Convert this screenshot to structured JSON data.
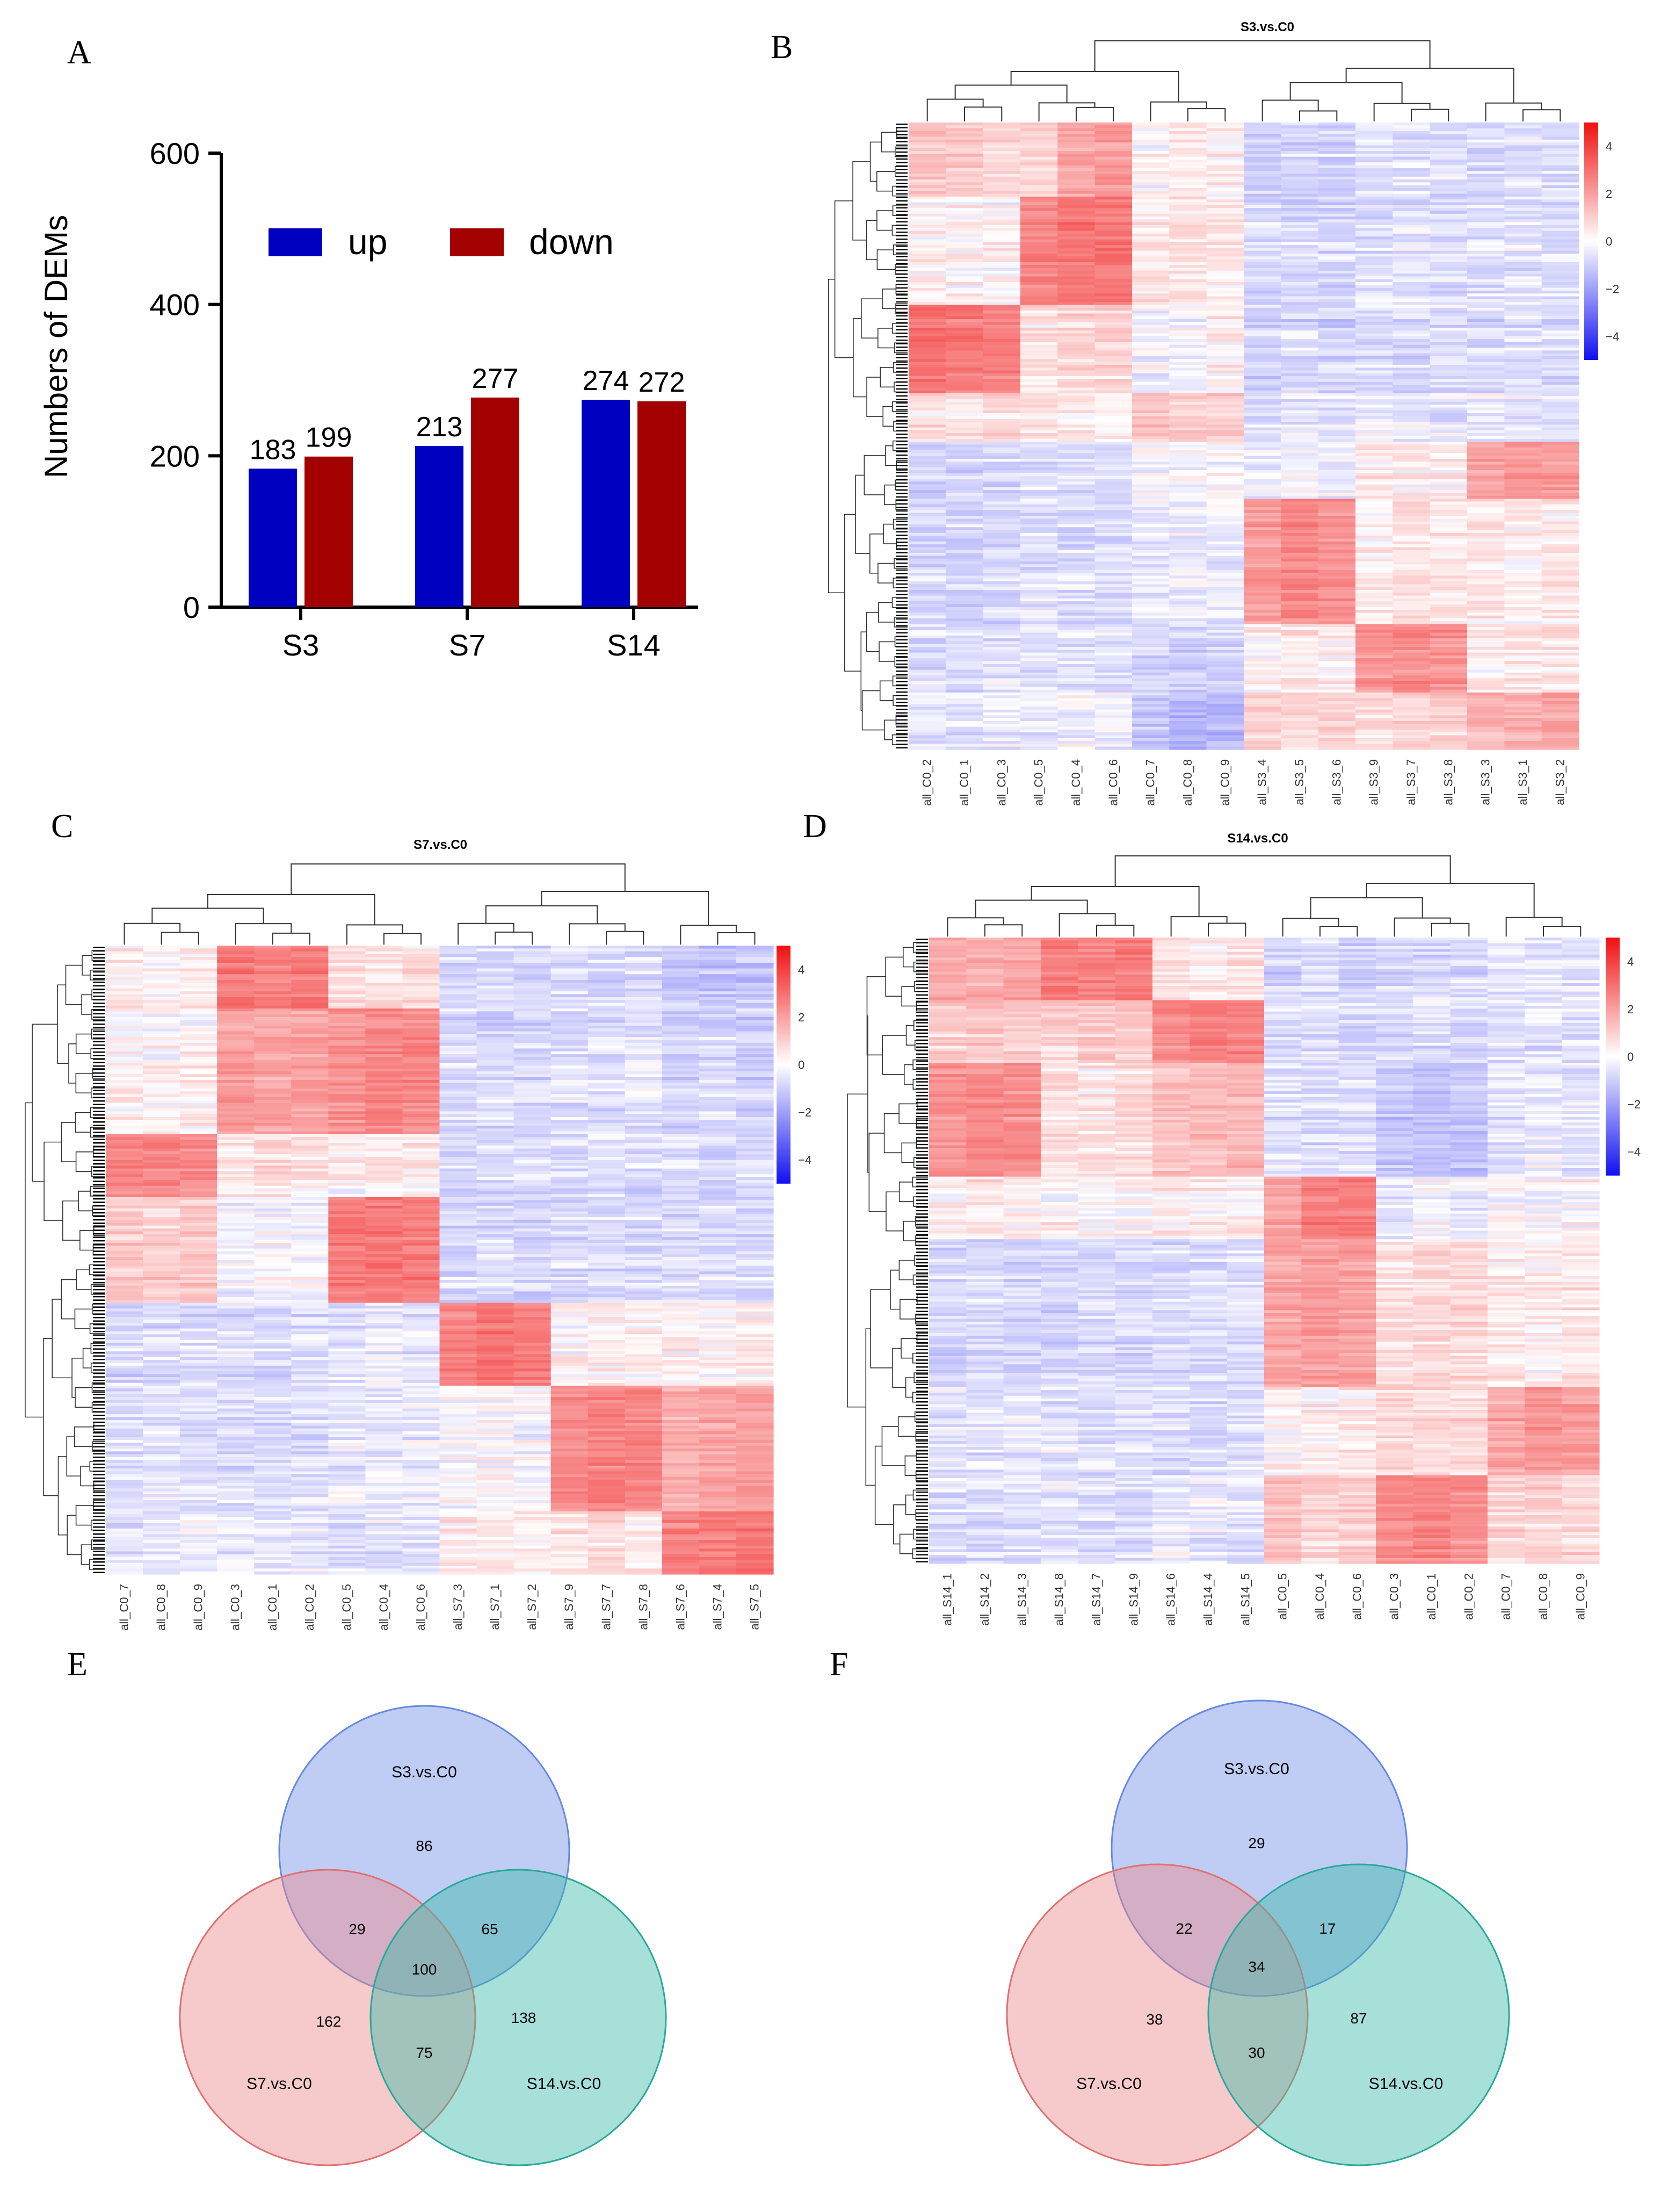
{
  "panel_letters": [
    "A",
    "B",
    "C",
    "D",
    "E",
    "F"
  ],
  "colors": {
    "up": "#0000c0",
    "down": "#a30000",
    "heat_high": "#f01010",
    "heat_mid": "#ffffff",
    "heat_low": "#1010f0",
    "venn_s3": "#7090e8",
    "venn_s7": "#ec8a8a",
    "venn_s14": "#3bbba8"
  },
  "chart_data": [
    {
      "type": "bar",
      "panel": "A",
      "ylabel": "Numbers of DEMs",
      "ylim": [
        0,
        600
      ],
      "yticks": [
        0,
        200,
        400,
        600
      ],
      "categories": [
        "S3",
        "S7",
        "S14"
      ],
      "series": [
        {
          "name": "up",
          "values": [
            183,
            213,
            274
          ]
        },
        {
          "name": "down",
          "values": [
            199,
            277,
            272
          ]
        }
      ],
      "legend": "top"
    },
    {
      "type": "heatmap",
      "panel": "B",
      "title": "S3.vs.C0",
      "columns": [
        "all_C0_2",
        "all_C0_1",
        "all_C0_3",
        "all_C0_5",
        "all_C0_4",
        "all_C0_6",
        "all_C0_7",
        "all_C0_8",
        "all_C0_9",
        "all_S3_4",
        "all_S3_5",
        "all_S3_6",
        "all_S3_9",
        "all_S3_7",
        "all_S3_8",
        "all_S3_3",
        "all_S3_1",
        "all_S3_2"
      ],
      "colorbar_ticks": [
        "4",
        "2",
        "0",
        "−2",
        "−4"
      ],
      "value_range": [
        -5,
        5
      ],
      "blocks": [
        {
          "rows": [
            0,
            0.12
          ],
          "cols": [
            1.0,
            0.9,
            0.7,
            0.7,
            1.6,
            1.9,
            0.1,
            0.4,
            0.3,
            -0.7,
            -0.6,
            -0.6,
            -0.3,
            -0.4,
            -0.4,
            -0.5,
            -0.4,
            -0.5
          ]
        },
        {
          "rows": [
            0.12,
            0.29
          ],
          "cols": [
            0.2,
            0.2,
            0.1,
            2.3,
            2.6,
            2.6,
            0.3,
            0.4,
            0.3,
            -0.6,
            -0.6,
            -0.6,
            -0.5,
            -0.4,
            -0.5,
            -0.5,
            -0.4,
            -0.5
          ]
        },
        {
          "rows": [
            0.29,
            0.43
          ],
          "cols": [
            2.7,
            2.5,
            2.4,
            0.4,
            0.6,
            0.6,
            -0.2,
            -0.1,
            0.2,
            -0.7,
            -0.6,
            -0.7,
            -0.6,
            -0.6,
            -0.5,
            -0.6,
            -0.5,
            -0.6
          ]
        },
        {
          "rows": [
            0.43,
            0.51
          ],
          "cols": [
            0.5,
            0.4,
            0.6,
            0.5,
            0.4,
            0.3,
            1.0,
            0.9,
            0.9,
            -0.4,
            -0.3,
            -0.4,
            -0.2,
            -0.3,
            -0.3,
            -0.2,
            -0.2,
            -0.3
          ]
        },
        {
          "rows": [
            0.51,
            0.6
          ],
          "cols": [
            -0.7,
            -0.7,
            -0.6,
            -0.5,
            -0.5,
            -0.5,
            -0.1,
            -0.1,
            0.0,
            -0.3,
            -0.2,
            -0.3,
            0.3,
            0.2,
            0.2,
            1.6,
            1.8,
            1.8
          ]
        },
        {
          "rows": [
            0.6,
            0.8
          ],
          "cols": [
            -0.6,
            -0.6,
            -0.6,
            -0.4,
            -0.5,
            -0.5,
            -0.3,
            -0.2,
            -0.2,
            1.8,
            2.2,
            2.0,
            0.3,
            0.5,
            0.3,
            0.4,
            0.2,
            0.3
          ]
        },
        {
          "rows": [
            0.8,
            0.91
          ],
          "cols": [
            -0.5,
            -0.5,
            -0.4,
            -0.4,
            -0.4,
            -0.4,
            -0.6,
            -0.7,
            -0.7,
            0.2,
            0.3,
            0.2,
            1.9,
            2.1,
            2.0,
            0.3,
            0.4,
            0.5
          ]
        },
        {
          "rows": [
            0.91,
            1.0
          ],
          "cols": [
            -0.4,
            -0.4,
            -0.3,
            -0.3,
            -0.2,
            -0.3,
            -1.0,
            -1.3,
            -1.2,
            0.8,
            0.6,
            0.7,
            0.5,
            0.6,
            0.8,
            1.2,
            1.3,
            1.6
          ]
        }
      ]
    },
    {
      "type": "heatmap",
      "panel": "C",
      "title": "S7.vs.C0",
      "columns": [
        "all_C0_7",
        "all_C0_8",
        "all_C0_9",
        "all_C0_3",
        "all_C0_1",
        "all_C0_2",
        "all_C0_5",
        "all_C0_4",
        "all_C0_6",
        "all_S7_3",
        "all_S7_1",
        "all_S7_2",
        "all_S7_9",
        "all_S7_7",
        "all_S7_8",
        "all_S7_6",
        "all_S7_4",
        "all_S7_5"
      ],
      "colorbar_ticks": [
        "4",
        "2",
        "0",
        "−2",
        "−4"
      ],
      "value_range": [
        -5,
        5
      ],
      "blocks": [
        {
          "rows": [
            0,
            0.1
          ],
          "cols": [
            0.3,
            0.2,
            0.3,
            2.6,
            2.4,
            2.5,
            0.5,
            0.4,
            0.5,
            -0.6,
            -0.5,
            -0.6,
            -0.5,
            -0.6,
            -0.5,
            -0.9,
            -1.0,
            -0.9
          ]
        },
        {
          "rows": [
            0.1,
            0.3
          ],
          "cols": [
            0.2,
            0.1,
            0.2,
            1.7,
            1.6,
            1.6,
            2.0,
            2.3,
            2.2,
            -0.6,
            -0.6,
            -0.6,
            -0.5,
            -0.5,
            -0.4,
            -0.7,
            -0.6,
            -0.7
          ]
        },
        {
          "rows": [
            0.3,
            0.4
          ],
          "cols": [
            2.4,
            2.2,
            2.1,
            0.4,
            0.5,
            0.4,
            0.2,
            0.3,
            0.3,
            -0.6,
            -0.5,
            -0.6,
            -0.5,
            -0.4,
            -0.5,
            -0.5,
            -0.6,
            -0.5
          ]
        },
        {
          "rows": [
            0.4,
            0.57
          ],
          "cols": [
            0.9,
            0.8,
            0.9,
            -0.1,
            0.0,
            -0.1,
            2.5,
            2.6,
            2.5,
            -0.6,
            -0.5,
            -0.6,
            -0.5,
            -0.5,
            -0.5,
            -0.5,
            -0.5,
            -0.5
          ]
        },
        {
          "rows": [
            0.57,
            0.7
          ],
          "cols": [
            -0.6,
            -0.5,
            -0.5,
            -0.5,
            -0.6,
            -0.5,
            -0.4,
            -0.3,
            -0.4,
            2.3,
            2.6,
            2.4,
            0.1,
            0.2,
            0.1,
            0.2,
            0.1,
            0.2
          ]
        },
        {
          "rows": [
            0.7,
            0.9
          ],
          "cols": [
            -0.5,
            -0.4,
            -0.5,
            -0.5,
            -0.5,
            -0.5,
            -0.3,
            -0.3,
            -0.3,
            -0.1,
            0.0,
            -0.1,
            2.1,
            2.3,
            2.2,
            1.4,
            1.6,
            1.7
          ]
        },
        {
          "rows": [
            0.9,
            1.0
          ],
          "cols": [
            -0.4,
            -0.4,
            -0.3,
            -0.3,
            -0.4,
            -0.3,
            -0.5,
            -0.4,
            -0.5,
            0.3,
            0.2,
            0.2,
            0.4,
            0.5,
            0.3,
            2.3,
            2.4,
            2.6
          ]
        }
      ]
    },
    {
      "type": "heatmap",
      "panel": "D",
      "title": "S14.vs.C0",
      "columns": [
        "all_S14_1",
        "all_S14_2",
        "all_S14_3",
        "all_S14_8",
        "all_S14_7",
        "all_S14_9",
        "all_S14_6",
        "all_S14_4",
        "all_S14_5",
        "all_C0_5",
        "all_C0_4",
        "all_C0_6",
        "all_C0_3",
        "all_C0_1",
        "all_C0_2",
        "all_C0_7",
        "all_C0_8",
        "all_C0_9"
      ],
      "colorbar_ticks": [
        "4",
        "2",
        "0",
        "−2",
        "−4"
      ],
      "value_range": [
        -5,
        5
      ],
      "blocks": [
        {
          "rows": [
            0,
            0.1
          ],
          "cols": [
            1.4,
            1.5,
            1.6,
            2.4,
            2.3,
            2.5,
            0.4,
            0.3,
            0.4,
            -0.7,
            -0.6,
            -0.7,
            -0.6,
            -0.7,
            -0.6,
            -0.4,
            -0.5,
            -0.4
          ]
        },
        {
          "rows": [
            0.1,
            0.2
          ],
          "cols": [
            0.8,
            0.9,
            0.7,
            0.7,
            0.9,
            0.8,
            2.1,
            2.4,
            2.3,
            -0.6,
            -0.5,
            -0.6,
            -0.6,
            -0.5,
            -0.6,
            -0.5,
            -0.4,
            -0.5
          ]
        },
        {
          "rows": [
            0.2,
            0.38
          ],
          "cols": [
            1.9,
            2.1,
            2.0,
            0.4,
            0.3,
            0.5,
            1.0,
            1.1,
            1.2,
            -0.5,
            -0.6,
            -0.5,
            -1.0,
            -1.1,
            -1.0,
            -0.4,
            -0.3,
            -0.4
          ]
        },
        {
          "rows": [
            0.38,
            0.48
          ],
          "cols": [
            0.3,
            0.4,
            0.3,
            0.2,
            0.1,
            0.2,
            0.3,
            0.2,
            0.3,
            1.8,
            2.4,
            2.5,
            -0.2,
            -0.1,
            -0.2,
            0.1,
            0.0,
            0.1
          ]
        },
        {
          "rows": [
            0.48,
            0.72
          ],
          "cols": [
            -0.6,
            -0.5,
            -0.6,
            -0.6,
            -0.5,
            -0.6,
            -0.5,
            -0.5,
            -0.5,
            1.6,
            1.8,
            1.7,
            0.5,
            0.7,
            0.6,
            0.3,
            0.2,
            0.4
          ]
        },
        {
          "rows": [
            0.72,
            0.86
          ],
          "cols": [
            -0.4,
            -0.4,
            -0.3,
            -0.4,
            -0.4,
            -0.4,
            -0.5,
            -0.5,
            -0.4,
            0.2,
            0.3,
            0.3,
            0.6,
            0.5,
            0.6,
            1.6,
            1.9,
            1.8
          ]
        },
        {
          "rows": [
            0.86,
            1.0
          ],
          "cols": [
            -0.5,
            -0.5,
            -0.4,
            -0.4,
            -0.5,
            -0.5,
            -0.3,
            -0.3,
            -0.4,
            1.0,
            0.7,
            0.8,
            2.1,
            2.3,
            2.0,
            0.6,
            0.7,
            0.6
          ]
        }
      ]
    },
    {
      "type": "venn",
      "panel": "E",
      "sets": [
        "S3.vs.C0",
        "S7.vs.C0",
        "S14.vs.C0"
      ],
      "regions": {
        "s3_only": 86,
        "s7_only": 162,
        "s14_only": 138,
        "s3_s7": 29,
        "s3_s14": 65,
        "s7_s14": 75,
        "all": 100
      }
    },
    {
      "type": "venn",
      "panel": "F",
      "sets": [
        "S3.vs.C0",
        "S7.vs.C0",
        "S14.vs.C0"
      ],
      "regions": {
        "s3_only": 29,
        "s7_only": 38,
        "s14_only": 87,
        "s3_s7": 22,
        "s3_s14": 17,
        "s7_s14": 30,
        "all": 34
      }
    }
  ]
}
